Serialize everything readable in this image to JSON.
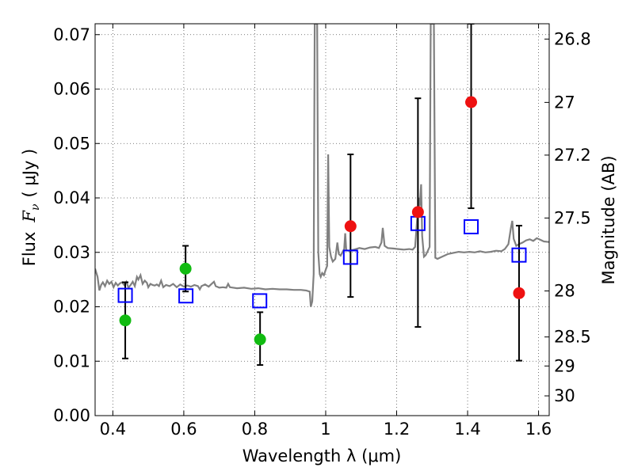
{
  "chart_data": {
    "type": "scatter",
    "xlabel": "Wavelength  λ (μm)",
    "ylabel_text": "Flux",
    "ylabel_symbol": "F",
    "ylabel_sub": "ν",
    "ylabel_units": "( μJy )",
    "y2label": "Magnitude (AB)",
    "xlim": [
      0.35,
      1.63
    ],
    "ylim": [
      0.0,
      0.072
    ],
    "grid": true,
    "x_ticks": [
      0.4,
      0.6,
      0.8,
      1.0,
      1.2,
      1.4,
      1.6
    ],
    "x_tick_labels": [
      "0.4",
      "0.6",
      "0.8",
      "1",
      "1.2",
      "1.4",
      "1.6"
    ],
    "y_ticks": [
      0.0,
      0.01,
      0.02,
      0.03,
      0.04,
      0.05,
      0.06,
      0.07
    ],
    "y_tick_labels": [
      "0.00",
      "0.01",
      "0.02",
      "0.03",
      "0.04",
      "0.05",
      "0.06",
      "0.07"
    ],
    "y2_ticks": [
      26.8,
      27,
      27.2,
      27.5,
      28,
      28.5,
      29,
      30
    ],
    "y2_tick_labels": [
      "26.8",
      "27",
      "27.2",
      "27.5",
      "28",
      "28.5",
      "29",
      "30"
    ],
    "colors": {
      "model": "#808080",
      "green": "#11bb11",
      "red": "#ee1111",
      "box": "#0000ff",
      "errorbar": "#000000",
      "grid": "#555555"
    },
    "series": [
      {
        "name": "green-measurements",
        "points": [
          {
            "x": 0.435,
            "y": 0.0175,
            "ylo": 0.0105,
            "yhi": 0.0245
          },
          {
            "x": 0.605,
            "y": 0.027,
            "ylo": 0.0228,
            "yhi": 0.0312
          },
          {
            "x": 0.815,
            "y": 0.014,
            "ylo": 0.0093,
            "yhi": 0.019
          }
        ]
      },
      {
        "name": "red-measurements",
        "points": [
          {
            "x": 1.07,
            "y": 0.0348,
            "ylo": 0.0218,
            "yhi": 0.048
          },
          {
            "x": 1.26,
            "y": 0.0374,
            "ylo": 0.0163,
            "yhi": 0.0583
          },
          {
            "x": 1.41,
            "y": 0.0576,
            "ylo": 0.0381,
            "yhi": 0.072
          },
          {
            "x": 1.545,
            "y": 0.0225,
            "ylo": 0.0101,
            "yhi": 0.0349
          }
        ]
      },
      {
        "name": "model-bandpass",
        "points": [
          {
            "x": 0.435,
            "y": 0.0221
          },
          {
            "x": 0.606,
            "y": 0.022
          },
          {
            "x": 0.814,
            "y": 0.0211
          },
          {
            "x": 1.07,
            "y": 0.0291
          },
          {
            "x": 1.26,
            "y": 0.0353
          },
          {
            "x": 1.41,
            "y": 0.0347
          },
          {
            "x": 1.545,
            "y": 0.0295
          }
        ]
      },
      {
        "name": "model-spectrum",
        "points": [
          [
            0.35,
            0.027
          ],
          [
            0.357,
            0.0255
          ],
          [
            0.362,
            0.023
          ],
          [
            0.367,
            0.024
          ],
          [
            0.372,
            0.0245
          ],
          [
            0.378,
            0.0238
          ],
          [
            0.384,
            0.0248
          ],
          [
            0.39,
            0.0242
          ],
          [
            0.396,
            0.0246
          ],
          [
            0.402,
            0.0236
          ],
          [
            0.408,
            0.0244
          ],
          [
            0.414,
            0.0239
          ],
          [
            0.42,
            0.0243
          ],
          [
            0.426,
            0.0245
          ],
          [
            0.432,
            0.024
          ],
          [
            0.438,
            0.0246
          ],
          [
            0.444,
            0.0235
          ],
          [
            0.45,
            0.024
          ],
          [
            0.456,
            0.0246
          ],
          [
            0.462,
            0.0238
          ],
          [
            0.468,
            0.0255
          ],
          [
            0.472,
            0.025
          ],
          [
            0.478,
            0.0258
          ],
          [
            0.484,
            0.0242
          ],
          [
            0.49,
            0.0248
          ],
          [
            0.496,
            0.0244
          ],
          [
            0.5,
            0.0236
          ],
          [
            0.506,
            0.0242
          ],
          [
            0.512,
            0.024
          ],
          [
            0.518,
            0.0239
          ],
          [
            0.524,
            0.0241
          ],
          [
            0.53,
            0.0238
          ],
          [
            0.536,
            0.0248
          ],
          [
            0.542,
            0.0236
          ],
          [
            0.55,
            0.024
          ],
          [
            0.56,
            0.0238
          ],
          [
            0.57,
            0.0242
          ],
          [
            0.58,
            0.0236
          ],
          [
            0.59,
            0.0241
          ],
          [
            0.6,
            0.0237
          ],
          [
            0.61,
            0.0239
          ],
          [
            0.62,
            0.0237
          ],
          [
            0.63,
            0.024
          ],
          [
            0.64,
            0.0238
          ],
          [
            0.645,
            0.0232
          ],
          [
            0.65,
            0.0238
          ],
          [
            0.66,
            0.0241
          ],
          [
            0.67,
            0.0237
          ],
          [
            0.68,
            0.0243
          ],
          [
            0.685,
            0.0246
          ],
          [
            0.69,
            0.0238
          ],
          [
            0.7,
            0.0235
          ],
          [
            0.71,
            0.0236
          ],
          [
            0.72,
            0.0235
          ],
          [
            0.725,
            0.0242
          ],
          [
            0.73,
            0.0236
          ],
          [
            0.75,
            0.0234
          ],
          [
            0.77,
            0.0235
          ],
          [
            0.79,
            0.0233
          ],
          [
            0.81,
            0.0234
          ],
          [
            0.83,
            0.0232
          ],
          [
            0.85,
            0.0233
          ],
          [
            0.87,
            0.0232
          ],
          [
            0.89,
            0.0232
          ],
          [
            0.91,
            0.0231
          ],
          [
            0.93,
            0.0231
          ],
          [
            0.945,
            0.023
          ],
          [
            0.955,
            0.0228
          ],
          [
            0.958,
            0.02
          ],
          [
            0.962,
            0.021
          ],
          [
            0.966,
            0.026
          ],
          [
            0.969,
            0.072
          ],
          [
            0.976,
            0.072
          ],
          [
            0.979,
            0.03
          ],
          [
            0.983,
            0.026
          ],
          [
            0.986,
            0.0255
          ],
          [
            0.99,
            0.0262
          ],
          [
            0.995,
            0.0258
          ],
          [
            1.0,
            0.0268
          ],
          [
            1.004,
            0.0275
          ],
          [
            1.007,
            0.048
          ],
          [
            1.01,
            0.031
          ],
          [
            1.015,
            0.0292
          ],
          [
            1.02,
            0.0283
          ],
          [
            1.027,
            0.0288
          ],
          [
            1.033,
            0.0318
          ],
          [
            1.037,
            0.0297
          ],
          [
            1.042,
            0.0294
          ],
          [
            1.047,
            0.03
          ],
          [
            1.052,
            0.0306
          ],
          [
            1.055,
            0.0335
          ],
          [
            1.058,
            0.0304
          ],
          [
            1.065,
            0.0303
          ],
          [
            1.08,
            0.0305
          ],
          [
            1.095,
            0.0308
          ],
          [
            1.11,
            0.0306
          ],
          [
            1.125,
            0.0309
          ],
          [
            1.14,
            0.031
          ],
          [
            1.15,
            0.0308
          ],
          [
            1.157,
            0.0318
          ],
          [
            1.161,
            0.0345
          ],
          [
            1.166,
            0.0312
          ],
          [
            1.175,
            0.0308
          ],
          [
            1.19,
            0.0307
          ],
          [
            1.205,
            0.0306
          ],
          [
            1.22,
            0.0305
          ],
          [
            1.235,
            0.0306
          ],
          [
            1.245,
            0.0305
          ],
          [
            1.252,
            0.031
          ],
          [
            1.256,
            0.0345
          ],
          [
            1.262,
            0.04
          ],
          [
            1.265,
            0.0385
          ],
          [
            1.269,
            0.0425
          ],
          [
            1.272,
            0.033
          ],
          [
            1.277,
            0.0292
          ],
          [
            1.282,
            0.0295
          ],
          [
            1.288,
            0.0303
          ],
          [
            1.293,
            0.031
          ],
          [
            1.296,
            0.072
          ],
          [
            1.305,
            0.072
          ],
          [
            1.309,
            0.029
          ],
          [
            1.315,
            0.0288
          ],
          [
            1.325,
            0.0291
          ],
          [
            1.335,
            0.0294
          ],
          [
            1.345,
            0.0297
          ],
          [
            1.36,
            0.0299
          ],
          [
            1.375,
            0.0301
          ],
          [
            1.39,
            0.03
          ],
          [
            1.405,
            0.0301
          ],
          [
            1.42,
            0.03
          ],
          [
            1.435,
            0.0302
          ],
          [
            1.45,
            0.03
          ],
          [
            1.465,
            0.0301
          ],
          [
            1.48,
            0.0303
          ],
          [
            1.495,
            0.0302
          ],
          [
            1.505,
            0.0306
          ],
          [
            1.515,
            0.0315
          ],
          [
            1.522,
            0.0345
          ],
          [
            1.526,
            0.0358
          ],
          [
            1.53,
            0.0325
          ],
          [
            1.537,
            0.0312
          ],
          [
            1.545,
            0.0315
          ],
          [
            1.555,
            0.0318
          ],
          [
            1.565,
            0.0322
          ],
          [
            1.575,
            0.0324
          ],
          [
            1.585,
            0.0321
          ],
          [
            1.595,
            0.0326
          ],
          [
            1.605,
            0.0323
          ],
          [
            1.615,
            0.032
          ],
          [
            1.63,
            0.0319
          ]
        ]
      }
    ]
  }
}
